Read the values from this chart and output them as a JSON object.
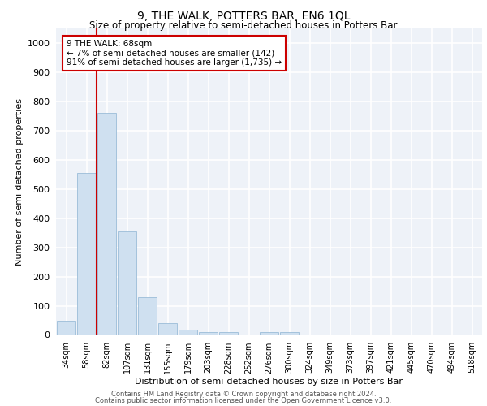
{
  "title": "9, THE WALK, POTTERS BAR, EN6 1QL",
  "subtitle": "Size of property relative to semi-detached houses in Potters Bar",
  "xlabel": "Distribution of semi-detached houses by size in Potters Bar",
  "ylabel": "Number of semi-detached properties",
  "categories": [
    "34sqm",
    "58sqm",
    "82sqm",
    "107sqm",
    "131sqm",
    "155sqm",
    "179sqm",
    "203sqm",
    "228sqm",
    "252sqm",
    "276sqm",
    "300sqm",
    "324sqm",
    "349sqm",
    "373sqm",
    "397sqm",
    "421sqm",
    "445sqm",
    "470sqm",
    "494sqm",
    "518sqm"
  ],
  "values": [
    50,
    555,
    760,
    355,
    130,
    40,
    18,
    10,
    10,
    0,
    10,
    10,
    0,
    0,
    0,
    0,
    0,
    0,
    0,
    0,
    0
  ],
  "bar_color": "#cfe0f0",
  "bar_edge_color": "#9bbcd8",
  "ylim": [
    0,
    1050
  ],
  "yticks": [
    0,
    100,
    200,
    300,
    400,
    500,
    600,
    700,
    800,
    900,
    1000
  ],
  "property_line_x": 1.5,
  "property_label": "9 THE WALK: 68sqm",
  "smaller_pct": "7%",
  "smaller_count": "142",
  "larger_pct": "91%",
  "larger_count": "1,735",
  "red_line_color": "#cc0000",
  "annotation_box_edge_color": "#cc0000",
  "background_color": "#eef2f8",
  "grid_color": "#ffffff",
  "footer1": "Contains HM Land Registry data © Crown copyright and database right 2024.",
  "footer2": "Contains public sector information licensed under the Open Government Licence v3.0."
}
